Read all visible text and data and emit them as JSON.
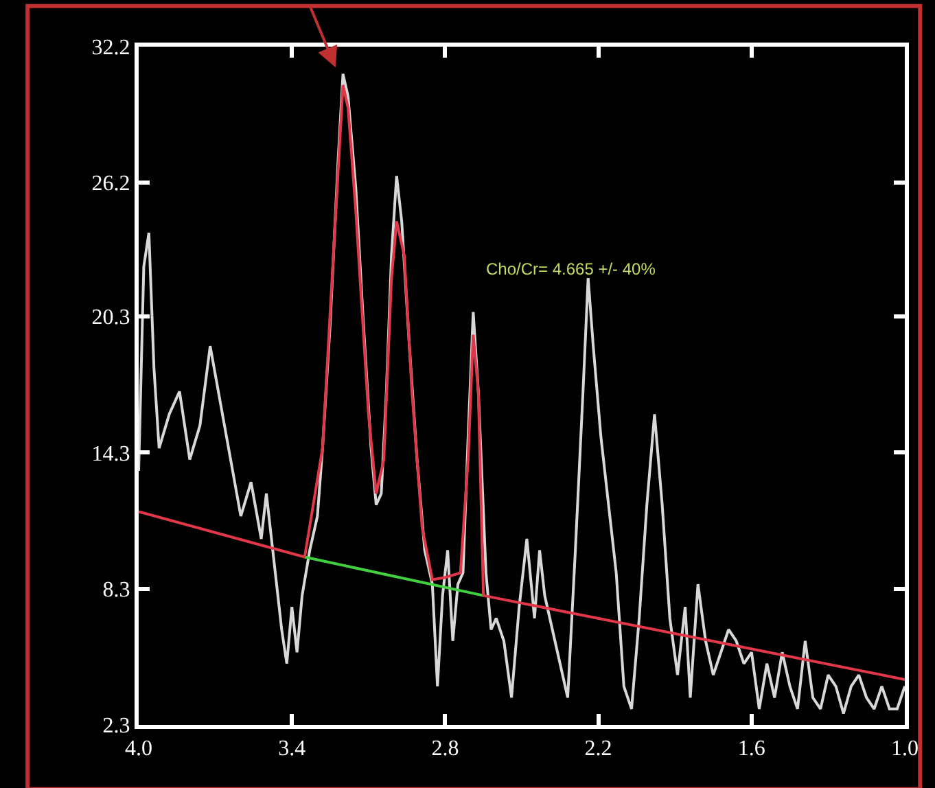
{
  "chart_data": {
    "type": "line",
    "xlim": [
      4.0,
      1.0
    ],
    "xticks": [
      {
        "value": 4.0,
        "label": "4.0"
      },
      3.4,
      2.8,
      2.2,
      1.6,
      {
        "value": 1.0,
        "label": "1.0"
      }
    ],
    "ylim": [
      2.3,
      32.2
    ],
    "yticks": [
      2.3,
      8.3,
      14.3,
      20.3,
      26.2,
      32.2
    ],
    "grid": false,
    "marker": "none",
    "line_style": "solid",
    "annotations": [
      "Cho/Cr= 4.665 +/- 40%"
    ],
    "series": [
      {
        "color": "#d8d8d8",
        "x": [
          4.0,
          3.98,
          3.96,
          3.94,
          3.92,
          3.88,
          3.84,
          3.8,
          3.76,
          3.72,
          3.68,
          3.64,
          3.6,
          3.56,
          3.52,
          3.5,
          3.47,
          3.44,
          3.42,
          3.4,
          3.38,
          3.36,
          3.33,
          3.3,
          3.28,
          3.25,
          3.22,
          3.2,
          3.18,
          3.15,
          3.12,
          3.09,
          3.07,
          3.05,
          3.03,
          3.01,
          2.99,
          2.97,
          2.94,
          2.91,
          2.88,
          2.85,
          2.83,
          2.81,
          2.79,
          2.77,
          2.75,
          2.73,
          2.71,
          2.69,
          2.67,
          2.64,
          2.62,
          2.6,
          2.57,
          2.54,
          2.51,
          2.48,
          2.45,
          2.43,
          2.41,
          2.38,
          2.35,
          2.32,
          2.29,
          2.26,
          2.24,
          2.22,
          2.19,
          2.16,
          2.13,
          2.1,
          2.07,
          2.04,
          2.01,
          1.98,
          1.95,
          1.92,
          1.89,
          1.86,
          1.84,
          1.81,
          1.78,
          1.75,
          1.72,
          1.69,
          1.66,
          1.63,
          1.6,
          1.57,
          1.54,
          1.51,
          1.48,
          1.45,
          1.42,
          1.39,
          1.36,
          1.33,
          1.3,
          1.27,
          1.24,
          1.21,
          1.18,
          1.15,
          1.12,
          1.09,
          1.06,
          1.03,
          1.0
        ],
        "values": [
          13.5,
          22.5,
          24.0,
          18.0,
          14.5,
          16.0,
          17.0,
          14.0,
          15.5,
          19.0,
          16.5,
          14.0,
          11.5,
          13.0,
          10.5,
          12.5,
          9.5,
          6.5,
          5.0,
          7.5,
          5.5,
          8.0,
          10.0,
          11.5,
          14.5,
          20.0,
          27.0,
          31.0,
          30.0,
          26.0,
          20.0,
          14.5,
          12.0,
          12.5,
          17.0,
          23.0,
          26.5,
          24.5,
          19.0,
          14.0,
          10.0,
          8.5,
          4.0,
          8.0,
          10.0,
          6.0,
          8.5,
          9.0,
          15.0,
          20.5,
          17.0,
          9.0,
          6.5,
          7.0,
          6.0,
          3.5,
          7.5,
          10.5,
          7.0,
          10.0,
          8.0,
          6.5,
          5.0,
          3.5,
          10.0,
          17.0,
          22.0,
          19.0,
          15.0,
          12.0,
          9.0,
          4.0,
          3.0,
          7.0,
          12.0,
          16.0,
          12.0,
          7.0,
          4.5,
          7.5,
          3.5,
          8.5,
          6.0,
          4.5,
          5.5,
          6.5,
          6.0,
          5.0,
          5.5,
          3.0,
          5.0,
          3.5,
          5.5,
          4.0,
          3.0,
          6.0,
          3.5,
          3.0,
          4.5,
          4.0,
          2.8,
          4.0,
          4.5,
          3.5,
          3.0,
          4.0,
          3.0,
          3.0,
          4.0
        ]
      },
      {
        "color": "#e03848",
        "x": [
          4.0,
          3.35
        ],
        "values": [
          11.7,
          9.7
        ]
      },
      {
        "color": "#40d040",
        "x": [
          3.35,
          2.65
        ],
        "values": [
          9.7,
          8.0
        ]
      },
      {
        "color": "#e03848",
        "x": [
          2.65,
          1.8,
          1.0
        ],
        "values": [
          8.0,
          6.1,
          4.3
        ]
      },
      {
        "color": "#e03848",
        "x": [
          3.35,
          3.28,
          3.22,
          3.2,
          3.18,
          3.15,
          3.1,
          3.07,
          3.04,
          3.01,
          2.99,
          2.96,
          2.93,
          2.89,
          2.85,
          2.8,
          2.74,
          2.71,
          2.69,
          2.67,
          2.65
        ],
        "values": [
          9.7,
          14.5,
          26.5,
          30.5,
          29.5,
          25.0,
          16.0,
          12.5,
          14.0,
          22.0,
          24.5,
          23.0,
          17.0,
          11.0,
          8.7,
          8.8,
          9.0,
          14.0,
          19.5,
          17.0,
          8.0
        ]
      }
    ]
  }
}
